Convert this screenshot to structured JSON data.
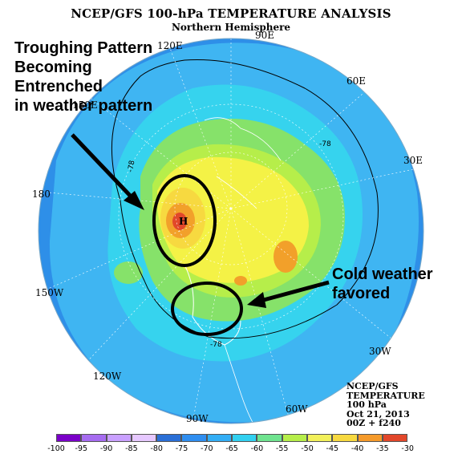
{
  "title": "NCEP/GFS 100-hPa TEMPERATURE ANALYSIS",
  "subtitle": "Northern Hemisphere",
  "annotations": {
    "left": [
      "Troughing Pattern",
      "Becoming",
      "Entrenched",
      "in weather pattern"
    ],
    "right": [
      "Cold weather",
      "favored"
    ]
  },
  "longitude_labels": [
    "120E",
    "90E",
    "60E",
    "30E",
    "150E",
    "180",
    "150W",
    "120W",
    "90W",
    "60W",
    "30W"
  ],
  "contour_label": "-78",
  "high_marker": "H",
  "info_block": [
    "NCEP/GFS",
    "TEMPERATURE",
    "100 hPa",
    "Oct 21, 2013",
    "00Z + f240"
  ],
  "legend": {
    "values": [
      "-100",
      "-95",
      "-90",
      "-85",
      "-80",
      "-75",
      "-70",
      "-65",
      "-60",
      "-55",
      "-50",
      "-45",
      "-40",
      "-35",
      "-30"
    ],
    "colors": [
      "#7a00c8",
      "#a66cf0",
      "#c9a0ff",
      "#e6c8ff",
      "#2a6fd6",
      "#2f8ef0",
      "#33aef5",
      "#32d0f0",
      "#6fe38f",
      "#b6ee4a",
      "#f2f05a",
      "#f7d940",
      "#f59a2a",
      "#e2472a",
      "#b5331b",
      "#8a6a50"
    ]
  },
  "colors": {
    "ocean_blue": "#2e8fe8",
    "light_blue": "#3fb5f2",
    "cyan": "#36d3ee",
    "green": "#86e26a",
    "yellow": "#f4f246",
    "orange": "#f2a02a",
    "red": "#e2482a"
  }
}
